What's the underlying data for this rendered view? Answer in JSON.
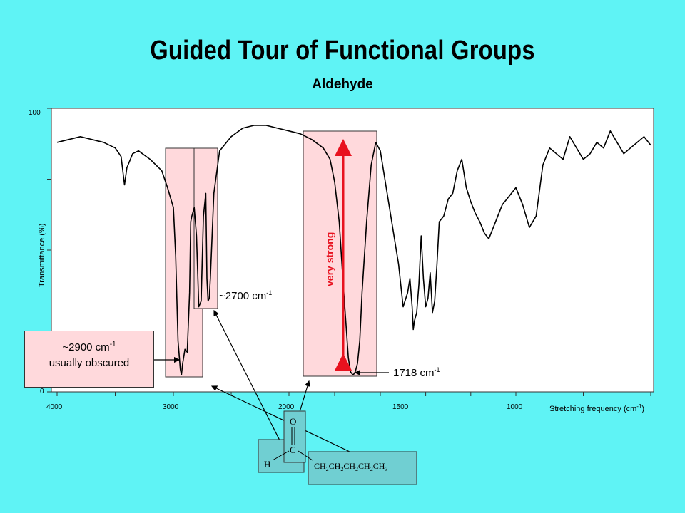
{
  "title": "Guided Tour of Functional Groups",
  "subtitle": "Aldehyde",
  "chart_data": {
    "type": "line",
    "title": "Guided Tour of Functional Groups",
    "subtitle": "Aldehyde",
    "xlabel": "Stretching frequency (cm-1)",
    "xlabel_main": "Stretching frequency (cm",
    "xlabel_sup": "-1",
    "xlabel_end": ")",
    "ylabel": "Transmittance (%)",
    "y_ticks": [
      "0",
      "100"
    ],
    "x_ticks": [
      "4000",
      "3000",
      "2000",
      "1500",
      "1000"
    ],
    "ylim": [
      0,
      100
    ],
    "series": [
      {
        "values_note": "transmittance (%) vs wavenumber (cm-1)",
        "x": [
          4000,
          3900,
          3800,
          3700,
          3600,
          3500,
          3450,
          3420,
          3400,
          3380,
          3350,
          3300,
          3200,
          3100,
          3050,
          3000,
          2980,
          2960,
          2940,
          2930,
          2920,
          2900,
          2880,
          2860,
          2850,
          2840,
          2820,
          2800,
          2780,
          2760,
          2740,
          2720,
          2710,
          2700,
          2690,
          2680,
          2650,
          2600,
          2500,
          2400,
          2300,
          2200,
          2100,
          2000,
          1950,
          1900,
          1850,
          1820,
          1800,
          1780,
          1760,
          1740,
          1730,
          1720,
          1718,
          1710,
          1700,
          1690,
          1680,
          1660,
          1640,
          1620,
          1600,
          1580,
          1560,
          1540,
          1520,
          1500,
          1480,
          1470,
          1460,
          1455,
          1450,
          1440,
          1430,
          1420,
          1410,
          1400,
          1390,
          1380,
          1370,
          1360,
          1350,
          1340,
          1320,
          1300,
          1280,
          1260,
          1240,
          1220,
          1200,
          1180,
          1160,
          1140,
          1120,
          1100,
          1080,
          1060,
          1040,
          1020,
          1000,
          980,
          960,
          940,
          920,
          900,
          880,
          860,
          840,
          820,
          800,
          780,
          760,
          740,
          720,
          700,
          680,
          660,
          640,
          620,
          600
        ],
        "values": [
          88,
          89,
          90,
          89,
          88,
          86,
          83,
          73,
          79,
          81,
          84,
          85,
          82,
          78,
          72,
          65,
          48,
          18,
          8,
          6,
          10,
          15,
          14,
          35,
          60,
          62,
          65,
          55,
          30,
          32,
          62,
          70,
          40,
          32,
          33,
          40,
          70,
          85,
          90,
          93,
          94,
          94,
          93,
          92,
          91,
          89,
          86,
          82,
          74,
          60,
          35,
          12,
          7,
          6,
          6,
          7,
          10,
          18,
          35,
          60,
          80,
          88,
          85,
          75,
          65,
          55,
          45,
          30,
          35,
          40,
          30,
          22,
          25,
          28,
          38,
          55,
          40,
          30,
          33,
          42,
          28,
          32,
          45,
          60,
          62,
          68,
          70,
          78,
          82,
          72,
          67,
          63,
          60,
          56,
          54,
          58,
          62,
          66,
          68,
          70,
          72,
          66,
          58,
          62,
          80,
          86,
          84,
          82,
          90,
          86,
          82,
          84,
          88,
          86,
          92,
          88,
          84,
          86,
          88,
          90,
          87
        ]
      }
    ],
    "annotations": {
      "peak_2700": "~2700 cm-1",
      "peak_2700_main": "~2700 cm",
      "peak_2900_line1_main": "~2900 cm",
      "peak_2900_line2": "usually obscured",
      "peak_1718_main": "1718 cm",
      "sup": "-1",
      "very_strong": "very strong"
    },
    "colors": {
      "highlight": "#ffd9dc",
      "arrow": "#e8121f",
      "line": "#000000",
      "background": "#5ff3f5"
    }
  },
  "molecule": {
    "H": "H",
    "C": "C",
    "O": "O",
    "chain_parts": [
      "CH",
      "2",
      "CH",
      "2",
      "CH",
      "2",
      "CH",
      "2",
      "CH",
      "3"
    ]
  }
}
